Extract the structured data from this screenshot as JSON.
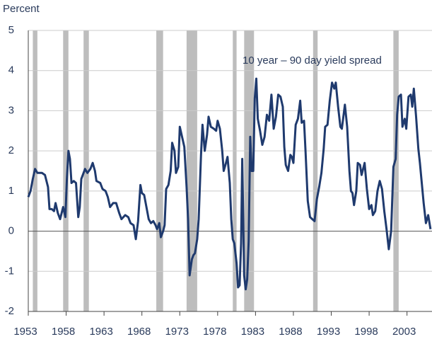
{
  "chart_data": {
    "type": "line",
    "y_label": "Percent",
    "x": [
      1953.0,
      1953.3,
      1953.6,
      1953.9,
      1954.2,
      1954.8,
      1955.2,
      1955.6,
      1955.8,
      1956.1,
      1956.4,
      1956.6,
      1956.9,
      1957.2,
      1957.6,
      1957.9,
      1958.1,
      1958.3,
      1958.5,
      1958.7,
      1959.0,
      1959.3,
      1959.6,
      1959.8,
      1960.0,
      1960.5,
      1960.8,
      1961.2,
      1961.5,
      1961.8,
      1962.0,
      1962.5,
      1962.8,
      1963.2,
      1963.5,
      1963.8,
      1964.2,
      1964.6,
      1965.0,
      1965.3,
      1965.8,
      1966.2,
      1966.5,
      1966.9,
      1967.2,
      1967.5,
      1967.8,
      1968.0,
      1968.3,
      1968.6,
      1968.9,
      1969.2,
      1969.5,
      1969.8,
      1970.0,
      1970.3,
      1970.5,
      1970.8,
      1971.0,
      1971.2,
      1971.5,
      1971.8,
      1972.0,
      1972.3,
      1972.5,
      1972.8,
      1973.0,
      1973.3,
      1973.6,
      1973.9,
      1974.1,
      1974.3,
      1974.6,
      1974.8,
      1975.0,
      1975.3,
      1975.5,
      1975.8,
      1976.0,
      1976.3,
      1976.6,
      1976.8,
      1977.1,
      1977.5,
      1977.8,
      1978.0,
      1978.3,
      1978.6,
      1978.8,
      1979.1,
      1979.3,
      1979.6,
      1979.8,
      1980.0,
      1980.2,
      1980.5,
      1980.7,
      1980.9,
      1981.1,
      1981.25,
      1981.5,
      1981.7,
      1981.9,
      1982.1,
      1982.3,
      1982.5,
      1982.7,
      1982.9,
      1983.1,
      1983.3,
      1983.6,
      1983.9,
      1984.2,
      1984.5,
      1984.8,
      1985.1,
      1985.4,
      1985.7,
      1986.0,
      1986.3,
      1986.6,
      1986.8,
      1987.0,
      1987.3,
      1987.6,
      1987.8,
      1988.0,
      1988.3,
      1988.6,
      1988.9,
      1989.1,
      1989.4,
      1989.6,
      1989.9,
      1990.2,
      1990.5,
      1990.8,
      1991.1,
      1991.4,
      1991.7,
      1992.0,
      1992.2,
      1992.5,
      1992.8,
      1993.1,
      1993.4,
      1993.6,
      1993.9,
      1994.2,
      1994.4,
      1994.8,
      1995.1,
      1995.4,
      1995.6,
      1995.8,
      1996.0,
      1996.3,
      1996.5,
      1996.8,
      1997.0,
      1997.4,
      1997.7,
      1998.0,
      1998.3,
      1998.5,
      1998.8,
      1999.1,
      1999.4,
      1999.7,
      2000.0,
      2000.3,
      2000.6,
      2000.9,
      2001.2,
      2001.5,
      2001.7,
      2001.9,
      2002.2,
      2002.4,
      2002.7,
      2002.9,
      2003.2,
      2003.5,
      2003.7,
      2003.9,
      2004.2,
      2004.5,
      2004.7,
      2004.9,
      2005.2,
      2005.5,
      2005.8,
      2006.1
    ],
    "series": [
      {
        "name": "10 year – 90 day yield spread",
        "color": "#1f3a6e",
        "values": [
          0.85,
          1.0,
          1.3,
          1.55,
          1.45,
          1.45,
          1.4,
          1.1,
          0.55,
          0.55,
          0.5,
          0.7,
          0.45,
          0.3,
          0.6,
          0.35,
          1.3,
          2.0,
          1.8,
          1.2,
          1.25,
          1.2,
          0.35,
          0.6,
          1.3,
          1.55,
          1.45,
          1.55,
          1.7,
          1.5,
          1.25,
          1.2,
          1.05,
          1.0,
          0.85,
          0.6,
          0.7,
          0.7,
          0.45,
          0.3,
          0.4,
          0.35,
          0.2,
          0.15,
          -0.2,
          0.25,
          1.15,
          0.95,
          0.9,
          0.6,
          0.3,
          0.2,
          0.25,
          0.15,
          0.05,
          0.2,
          -0.15,
          0.0,
          0.15,
          1.05,
          1.15,
          1.5,
          2.2,
          2.0,
          1.45,
          1.6,
          2.6,
          2.35,
          2.1,
          1.1,
          0.3,
          -1.1,
          -0.7,
          -0.6,
          -0.55,
          -0.2,
          0.3,
          1.9,
          2.65,
          2.0,
          2.4,
          2.85,
          2.6,
          2.55,
          2.5,
          2.75,
          2.55,
          2.0,
          1.5,
          1.7,
          1.85,
          1.2,
          0.3,
          -0.2,
          -0.3,
          -0.8,
          -1.4,
          -1.35,
          -0.3,
          1.8,
          -1.1,
          -1.45,
          -1.2,
          -0.25,
          2.35,
          1.5,
          1.5,
          3.3,
          3.8,
          2.8,
          2.5,
          2.15,
          2.35,
          2.9,
          2.75,
          3.4,
          2.55,
          2.85,
          3.4,
          3.35,
          3.1,
          2.1,
          1.65,
          1.5,
          1.9,
          1.85,
          1.7,
          2.65,
          2.8,
          3.25,
          2.7,
          2.75,
          2.0,
          0.75,
          0.35,
          0.3,
          0.25,
          0.8,
          1.1,
          1.45,
          2.05,
          2.6,
          2.65,
          3.25,
          3.7,
          3.55,
          3.7,
          3.1,
          2.6,
          2.55,
          3.15,
          2.6,
          1.5,
          1.0,
          0.95,
          0.65,
          1.0,
          1.7,
          1.65,
          1.4,
          1.7,
          1.05,
          0.55,
          0.65,
          0.4,
          0.5,
          1.0,
          1.25,
          1.05,
          0.5,
          0.05,
          -0.45,
          0.0,
          1.6,
          1.8,
          2.9,
          3.35,
          3.4,
          2.6,
          2.8,
          2.55,
          3.35,
          3.4,
          3.1,
          3.55,
          2.85,
          2.05,
          1.7,
          1.3,
          0.7,
          0.2,
          0.4,
          0.05
        ]
      }
    ],
    "recessions": [
      [
        1953.6,
        1954.2
      ],
      [
        1957.6,
        1958.3
      ],
      [
        1960.3,
        1961.0
      ],
      [
        1969.9,
        1970.8
      ],
      [
        1973.9,
        1975.3
      ],
      [
        1980.0,
        1980.5
      ],
      [
        1981.5,
        1982.8
      ],
      [
        1990.6,
        1991.2
      ],
      [
        2001.2,
        2001.9
      ]
    ],
    "recession_color": "#bdbdbd",
    "xlim": [
      1953,
      2006.3
    ],
    "xticks": [
      1953,
      1958,
      1963,
      1968,
      1973,
      1978,
      1983,
      1988,
      1993,
      1998,
      2003
    ],
    "ylim": [
      -2,
      5
    ],
    "yticks": [
      -2,
      -1,
      0,
      1,
      2,
      3,
      4,
      5
    ],
    "grid": true
  }
}
